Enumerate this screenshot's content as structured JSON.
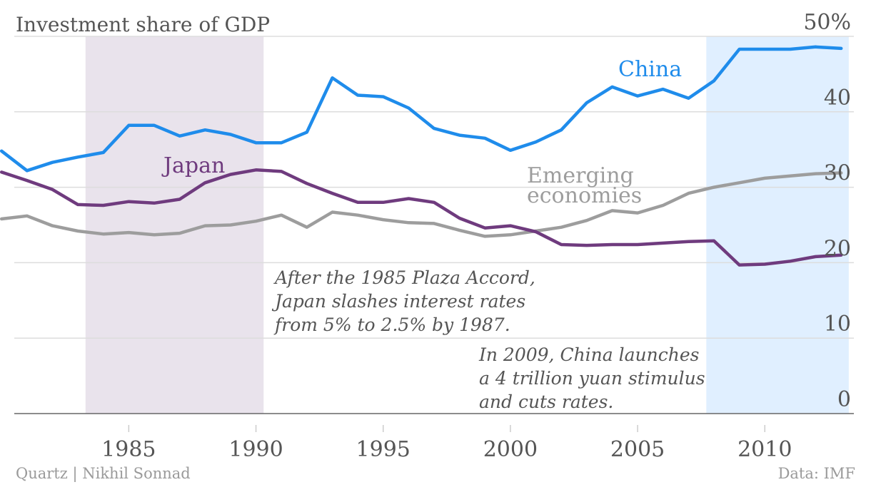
{
  "chart_data": {
    "type": "line",
    "title": "Investment share of GDP",
    "ylim": [
      0,
      50
    ],
    "xlim": [
      1980.5,
      2013.5
    ],
    "y_ticks": [
      0,
      10,
      20,
      30,
      40,
      50
    ],
    "y_tick_labels": [
      "0",
      "10",
      "20",
      "30",
      "40",
      "50%"
    ],
    "x_ticks": [
      1985,
      1990,
      1995,
      2000,
      2005,
      2010
    ],
    "x_tick_labels": [
      "1985",
      "1990",
      "1995",
      "2000",
      "2005",
      "2010"
    ],
    "grid": true,
    "y_axis_position": "right",
    "x": [
      1980,
      1981,
      1982,
      1983,
      1984,
      1985,
      1986,
      1987,
      1988,
      1989,
      1990,
      1991,
      1992,
      1993,
      1994,
      1995,
      1996,
      1997,
      1998,
      1999,
      2000,
      2001,
      2002,
      2003,
      2004,
      2005,
      2006,
      2007,
      2008,
      2009,
      2010,
      2011,
      2012,
      2013
    ],
    "series": [
      {
        "name": "China",
        "color": "#1f8ceb",
        "values": [
          34.8,
          32.2,
          33.3,
          34.0,
          34.6,
          38.2,
          38.2,
          36.8,
          37.6,
          37.0,
          35.9,
          35.9,
          37.3,
          44.5,
          42.2,
          42.0,
          40.5,
          37.8,
          36.9,
          36.5,
          34.9,
          36.0,
          37.6,
          41.2,
          43.3,
          42.1,
          43.0,
          41.8,
          44.1,
          48.3,
          48.3,
          48.3,
          48.6,
          48.4
        ]
      },
      {
        "name": "Japan",
        "color": "#6f3b7e",
        "values": [
          32.0,
          30.9,
          29.7,
          27.7,
          27.6,
          28.1,
          27.9,
          28.4,
          30.6,
          31.7,
          32.3,
          32.1,
          30.5,
          29.2,
          28.0,
          28.0,
          28.5,
          28.0,
          25.9,
          24.6,
          24.9,
          24.1,
          22.4,
          22.3,
          22.4,
          22.4,
          22.6,
          22.8,
          22.9,
          19.7,
          19.8,
          20.2,
          20.8,
          21.0
        ]
      },
      {
        "name": "Emerging economies",
        "color": "#9d9d9d",
        "values": [
          25.8,
          26.2,
          24.9,
          24.2,
          23.8,
          24.0,
          23.7,
          23.9,
          24.9,
          25.0,
          25.5,
          26.3,
          24.7,
          26.7,
          26.3,
          25.7,
          25.3,
          25.2,
          24.3,
          23.5,
          23.7,
          24.2,
          24.7,
          25.6,
          26.9,
          26.6,
          27.6,
          29.2,
          30.0,
          30.6,
          31.2,
          31.5,
          31.8,
          31.9
        ]
      }
    ],
    "shaded_regions": [
      {
        "from": 1983.3,
        "to": 1990.3,
        "color": "#e9e3ec"
      },
      {
        "from": 2007.7,
        "to": 2013.3,
        "color": "#e0efff"
      }
    ],
    "series_labels": {
      "china": "China",
      "japan": "Japan",
      "emerging_line1": "Emerging",
      "emerging_line2": "economies"
    },
    "annotations": {
      "plaza": [
        "After the 1985 Plaza Accord,",
        "Japan slashes interest rates",
        "from 5% to 2.5% by 1987."
      ],
      "stimulus": [
        "In 2009, China launches",
        "a 4 trillion yuan stimulus",
        "and cuts rates."
      ]
    },
    "source_left": "Quartz | Nikhil Sonnad",
    "source_right": "Data: IMF"
  }
}
